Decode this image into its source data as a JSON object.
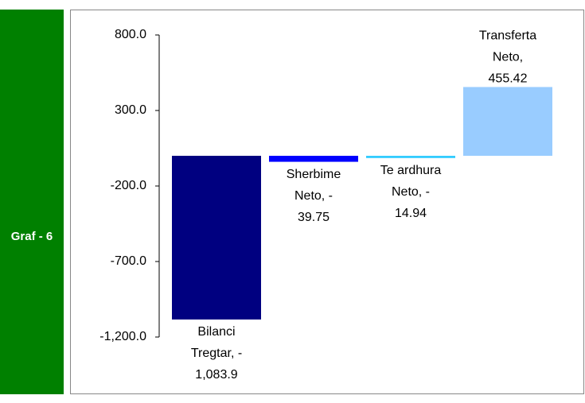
{
  "chart_data": {
    "type": "bar",
    "side_label": "Graf - 6",
    "values": [
      -1083.9,
      -39.75,
      -14.94,
      455.42
    ],
    "value_labels": [
      [
        "Bilanci",
        "Tregtar, -",
        "1,083.9"
      ],
      [
        "Sherbime",
        "Neto, -",
        "39.75"
      ],
      [
        "Te ardhura",
        "Neto, -",
        "14.94"
      ],
      [
        "Transferta",
        "Neto,",
        "455.42"
      ]
    ],
    "colors": [
      "#000080",
      "#0000ff",
      "#33ccff",
      "#99ccff"
    ],
    "ylim": [
      -1200,
      800
    ],
    "yticks": [
      {
        "value": 800,
        "label": "800.0"
      },
      {
        "value": 300,
        "label": "300.0"
      },
      {
        "value": -200,
        "label": "-200.0"
      },
      {
        "value": -700,
        "label": "-700.0"
      },
      {
        "value": -1200,
        "label": "-1,200.0"
      }
    ],
    "grid": false
  }
}
